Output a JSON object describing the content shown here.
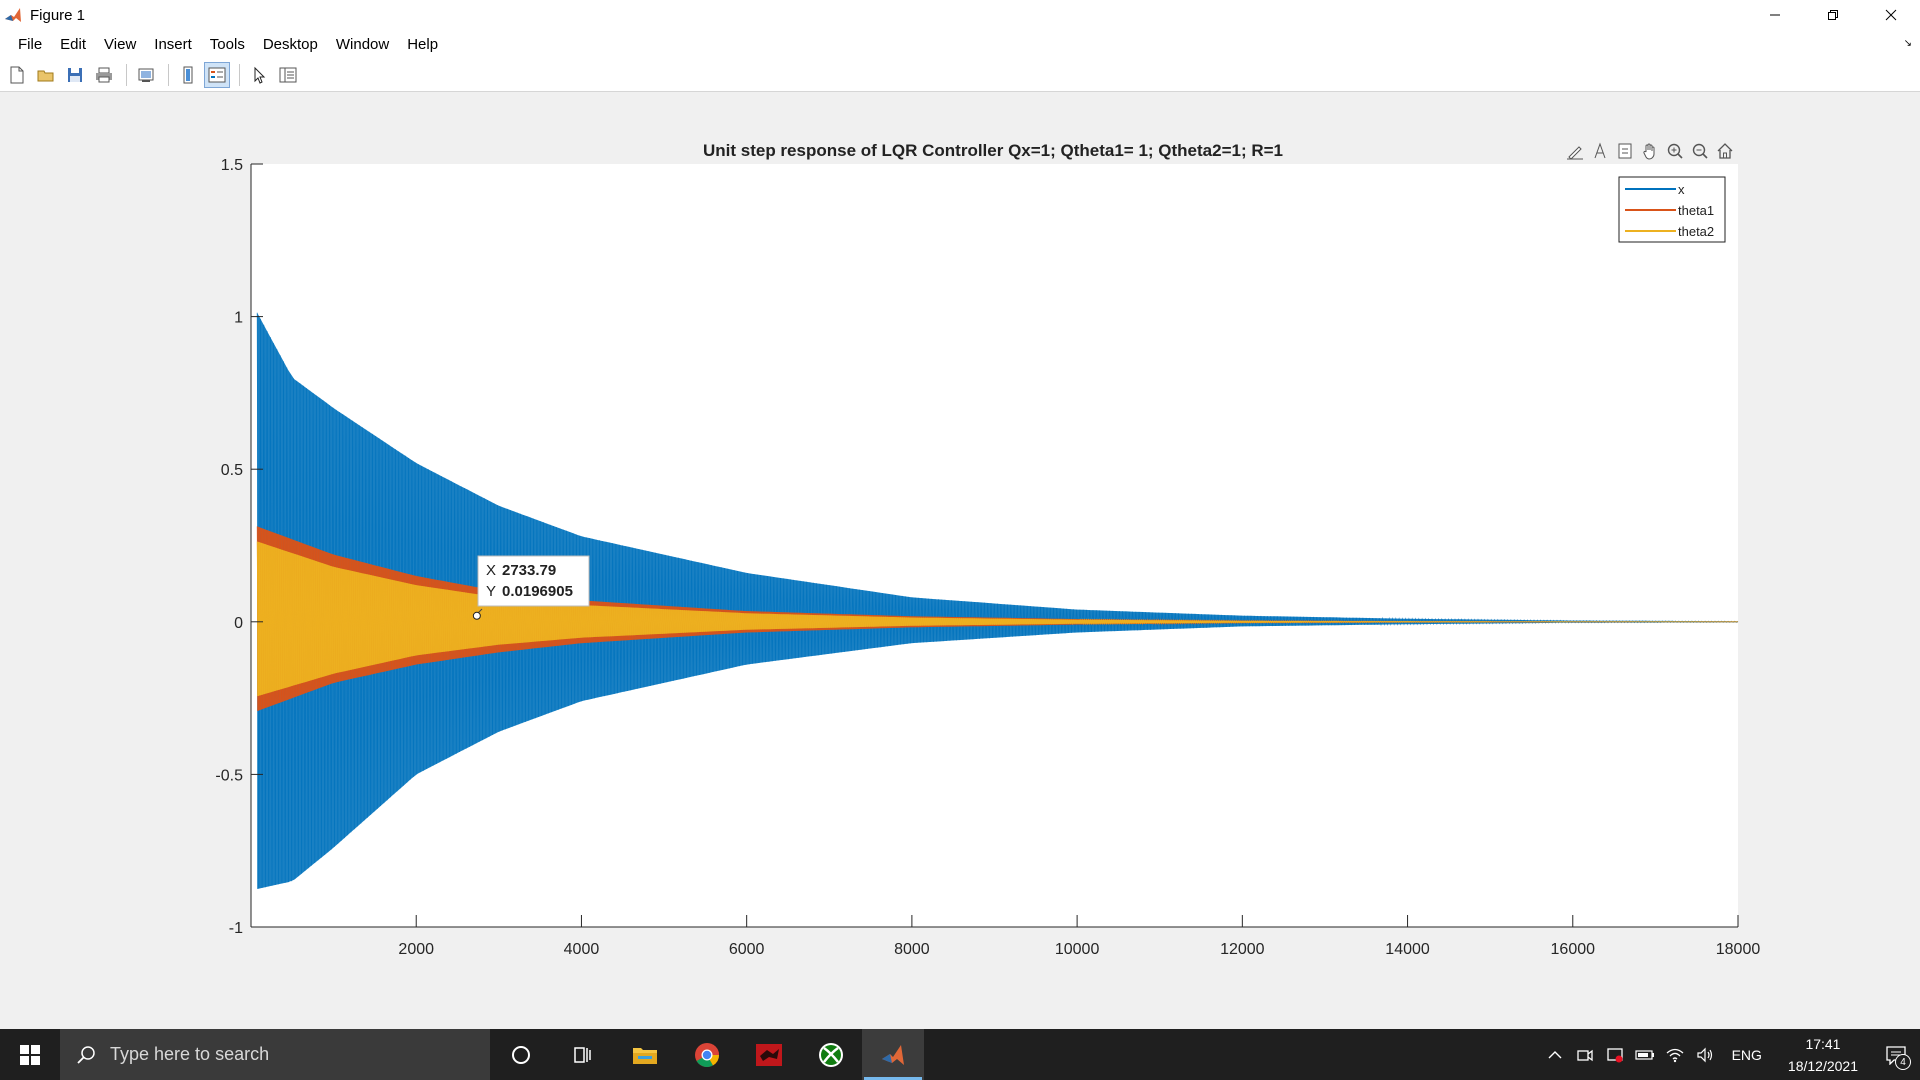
{
  "window": {
    "title": "Figure 1"
  },
  "menu": [
    "File",
    "Edit",
    "View",
    "Insert",
    "Tools",
    "Desktop",
    "Window",
    "Help"
  ],
  "toolbar_icons": [
    "new-figure-icon",
    "open-icon",
    "save-icon",
    "print-icon",
    "link-plot-icon",
    "insert-colorbar-icon",
    "insert-legend-icon",
    "edit-plot-icon",
    "property-inspector-icon"
  ],
  "axes_toolbar_icons": [
    "brush-icon",
    "data-tips-icon",
    "export-icon",
    "pan-icon",
    "zoom-in-icon",
    "zoom-out-icon",
    "home-icon"
  ],
  "chart_data": {
    "type": "line",
    "title": "Unit step response of LQR Controller Qx=1; Qtheta1= 1; Qtheta2=1; R=1",
    "xlabel": "",
    "ylabel": "",
    "xlim": [
      0,
      18000
    ],
    "ylim": [
      -1,
      1.5
    ],
    "x_ticks": [
      "2000",
      "4000",
      "6000",
      "8000",
      "10000",
      "12000",
      "14000",
      "16000",
      "18000"
    ],
    "y_ticks": [
      "-1",
      "-0.5",
      "0",
      "0.5",
      "1",
      "1.5"
    ],
    "legend": {
      "placement": "top-right",
      "entries": [
        "x",
        "theta1",
        "theta2"
      ]
    },
    "series": [
      {
        "name": "x",
        "color": "#0072BD",
        "style": "damped-oscillation",
        "envelope": {
          "x": [
            0,
            500,
            1000,
            2000,
            3000,
            4000,
            6000,
            8000,
            10000,
            12000,
            14000,
            16000,
            18000
          ],
          "upper": [
            1.05,
            0.8,
            0.7,
            0.52,
            0.38,
            0.28,
            0.16,
            0.08,
            0.04,
            0.02,
            0.01,
            0.004,
            0.002
          ],
          "lower": [
            -0.88,
            -0.85,
            -0.74,
            -0.5,
            -0.36,
            -0.26,
            -0.14,
            -0.07,
            -0.035,
            -0.015,
            -0.008,
            -0.003,
            -0.002
          ]
        }
      },
      {
        "name": "theta1",
        "color": "#D95319",
        "style": "damped-oscillation",
        "envelope": {
          "x": [
            0,
            1000,
            2000,
            3000,
            4000,
            6000,
            8000,
            10000,
            12000,
            14000,
            16000,
            18000
          ],
          "upper": [
            0.32,
            0.22,
            0.15,
            0.1,
            0.07,
            0.035,
            0.018,
            0.009,
            0.004,
            0.002,
            0.001,
            0.0005
          ],
          "lower": [
            -0.3,
            -0.2,
            -0.14,
            -0.1,
            -0.07,
            -0.035,
            -0.018,
            -0.009,
            -0.004,
            -0.002,
            -0.001,
            -0.0005
          ]
        }
      },
      {
        "name": "theta2",
        "color": "#EDB120",
        "style": "damped-oscillation",
        "envelope": {
          "x": [
            0,
            1000,
            2000,
            3000,
            4000,
            6000,
            8000,
            10000,
            12000,
            14000,
            16000,
            18000
          ],
          "upper": [
            0.27,
            0.18,
            0.12,
            0.08,
            0.055,
            0.028,
            0.014,
            0.007,
            0.003,
            0.0015,
            0.0008,
            0.0004
          ],
          "lower": [
            -0.25,
            -0.17,
            -0.11,
            -0.075,
            -0.052,
            -0.026,
            -0.013,
            -0.0065,
            -0.003,
            -0.0015,
            -0.0008,
            -0.0004
          ]
        }
      }
    ],
    "datatip": {
      "x_label": "X",
      "x_value": "2733.79",
      "y_label": "Y",
      "y_value": "0.0196905",
      "x": 2733.79,
      "y": 0.0196905
    }
  },
  "taskbar": {
    "search_placeholder": "Type here to search",
    "apps": [
      "cortana-icon",
      "task-view-icon",
      "file-explorer-icon",
      "chrome-icon",
      "red-app-icon",
      "xbox-icon",
      "matlab-icon"
    ],
    "language": "ENG",
    "time": "17:41",
    "date": "18/12/2021",
    "notification_count": "4"
  }
}
